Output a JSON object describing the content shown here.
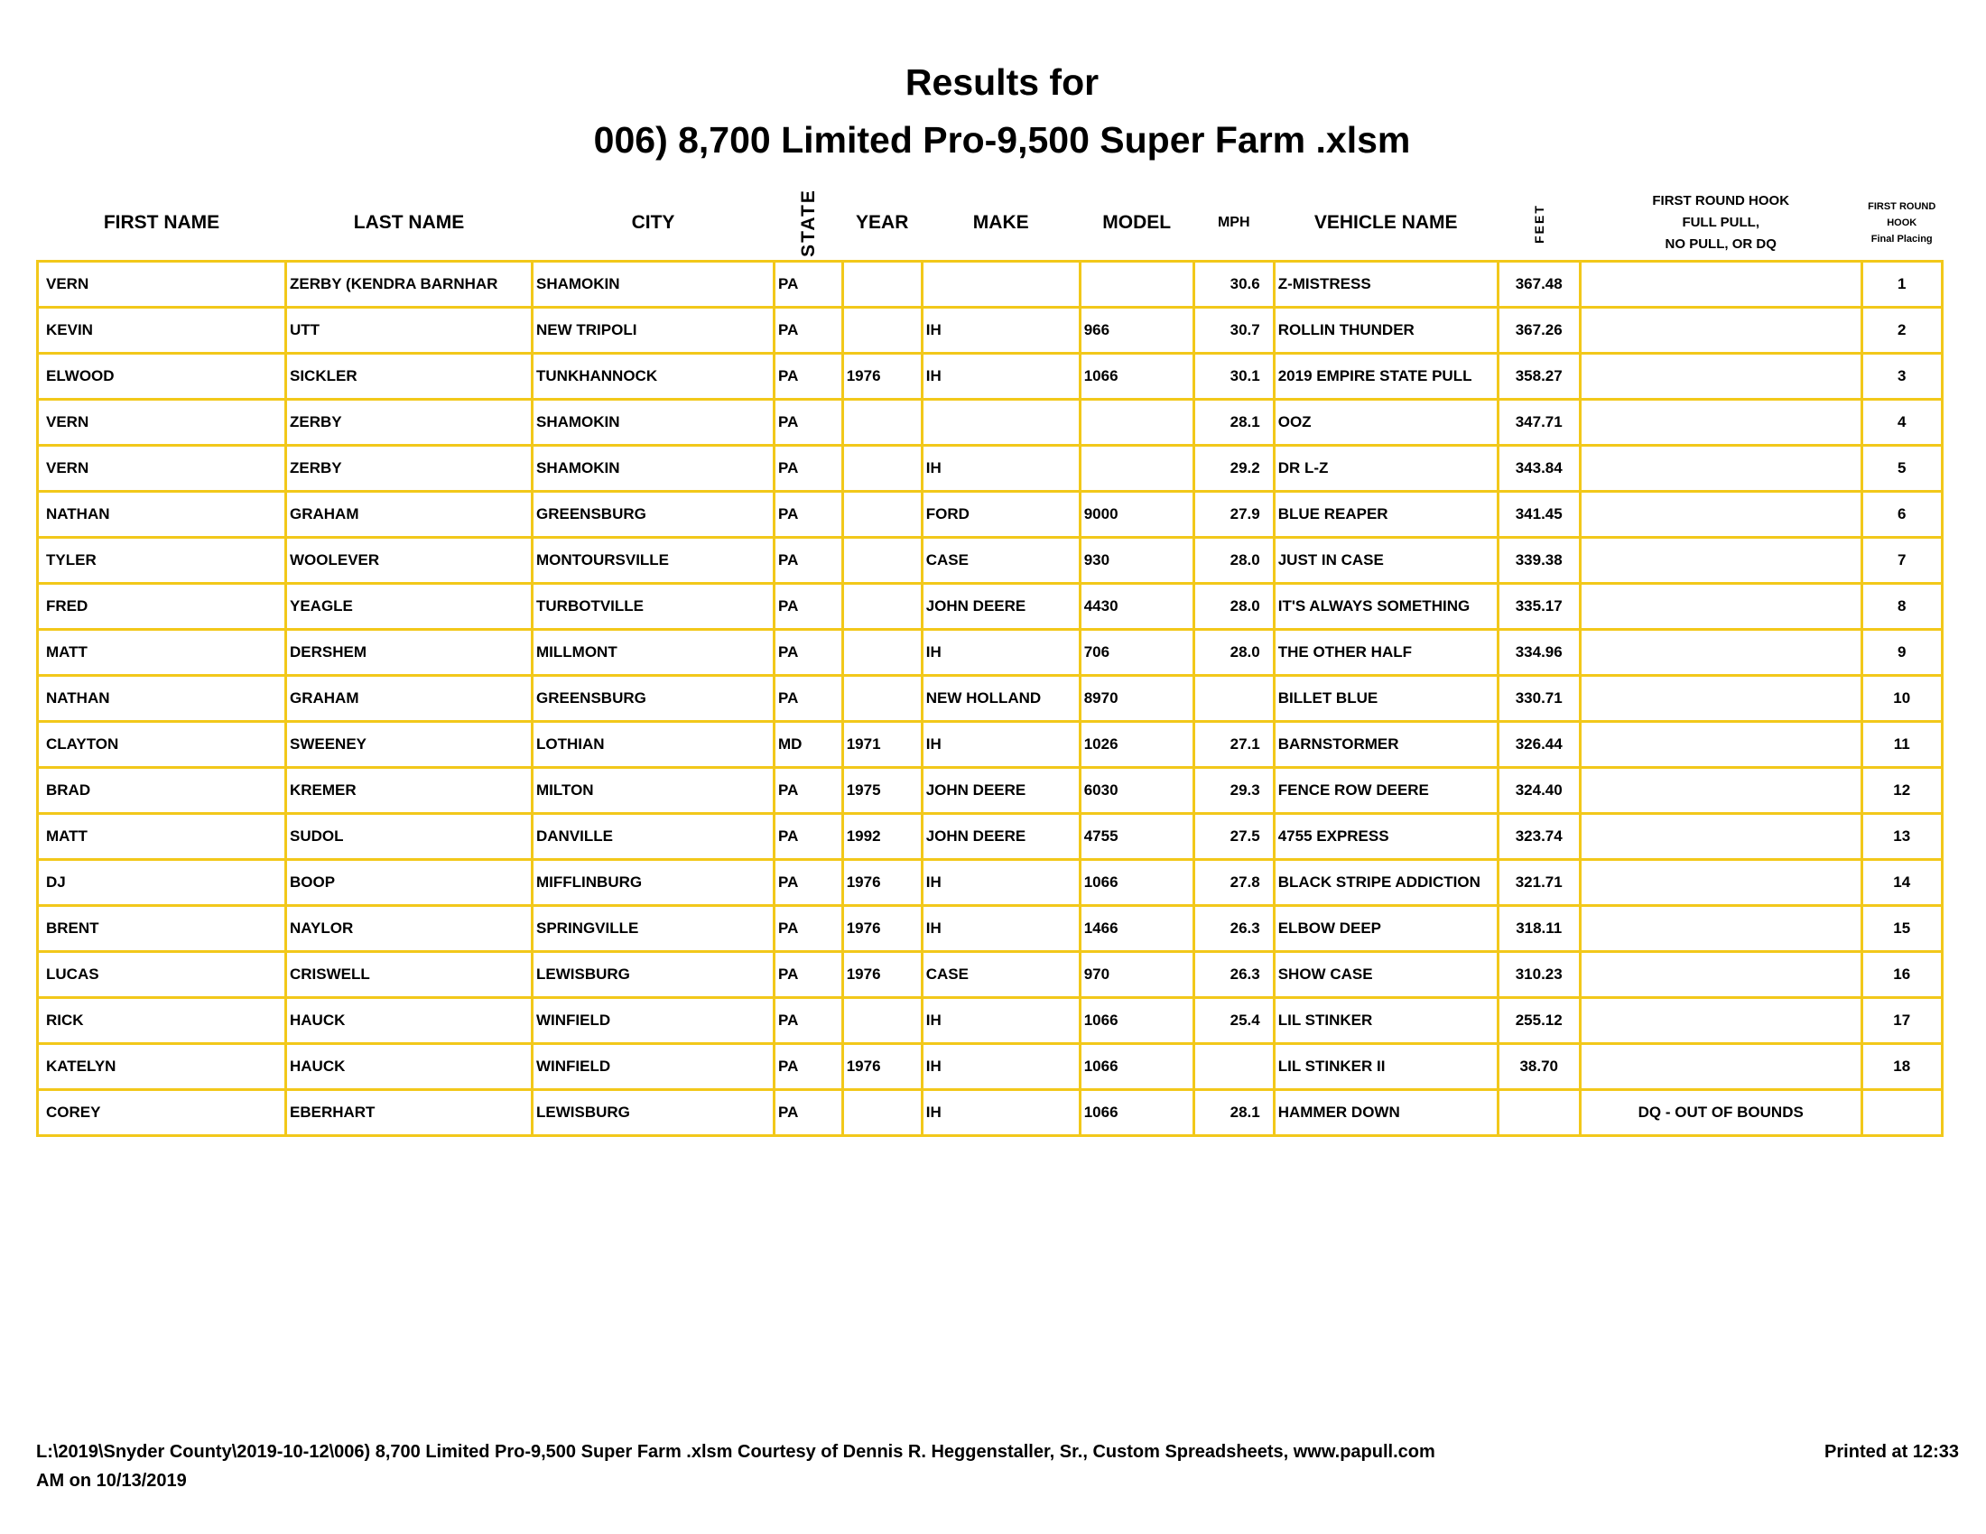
{
  "title_line1": "Results for",
  "title_line2": "006) 8,700 Limited Pro-9,500 Super Farm .xlsm",
  "columns": [
    "FIRST NAME",
    "LAST NAME",
    "CITY",
    "STATE",
    "YEAR",
    "MAKE",
    "MODEL",
    "MPH",
    "VEHICLE NAME",
    "FEET",
    "FIRST ROUND HOOK|FULL PULL,|NO PULL, OR DQ",
    "FIRST ROUND|HOOK|Final Placing"
  ],
  "rows": [
    [
      "VERN",
      "ZERBY (KENDRA BARNHAR",
      "SHAMOKIN",
      "PA",
      "",
      "",
      "",
      "30.6",
      "Z-MISTRESS",
      "367.48",
      "",
      "1"
    ],
    [
      "KEVIN",
      "UTT",
      "NEW TRIPOLI",
      "PA",
      "",
      "IH",
      "966",
      "30.7",
      "ROLLIN THUNDER",
      "367.26",
      "",
      "2"
    ],
    [
      "ELWOOD",
      "SICKLER",
      "TUNKHANNOCK",
      "PA",
      "1976",
      "IH",
      "1066",
      "30.1",
      "2019 EMPIRE STATE PULL",
      "358.27",
      "",
      "3"
    ],
    [
      "VERN",
      "ZERBY",
      "SHAMOKIN",
      "PA",
      "",
      "",
      "",
      "28.1",
      "OOZ",
      "347.71",
      "",
      "4"
    ],
    [
      "VERN",
      "ZERBY",
      "SHAMOKIN",
      "PA",
      "",
      "IH",
      "",
      "29.2",
      "DR L-Z",
      "343.84",
      "",
      "5"
    ],
    [
      "NATHAN",
      "GRAHAM",
      "GREENSBURG",
      "PA",
      "",
      "FORD",
      "9000",
      "27.9",
      "BLUE REAPER",
      "341.45",
      "",
      "6"
    ],
    [
      "TYLER",
      "WOOLEVER",
      "MONTOURSVILLE",
      "PA",
      "",
      "CASE",
      "930",
      "28.0",
      "JUST IN CASE",
      "339.38",
      "",
      "7"
    ],
    [
      "FRED",
      "YEAGLE",
      "TURBOTVILLE",
      "PA",
      "",
      "JOHN DEERE",
      "4430",
      "28.0",
      "IT'S ALWAYS SOMETHING",
      "335.17",
      "",
      "8"
    ],
    [
      "MATT",
      "DERSHEM",
      "MILLMONT",
      "PA",
      "",
      "IH",
      "706",
      "28.0",
      "THE OTHER HALF",
      "334.96",
      "",
      "9"
    ],
    [
      "NATHAN",
      "GRAHAM",
      "GREENSBURG",
      "PA",
      "",
      "NEW HOLLAND",
      "8970",
      "",
      "BILLET BLUE",
      "330.71",
      "",
      "10"
    ],
    [
      "CLAYTON",
      "SWEENEY",
      "LOTHIAN",
      "MD",
      "1971",
      "IH",
      "1026",
      "27.1",
      "BARNSTORMER",
      "326.44",
      "",
      "11"
    ],
    [
      "BRAD",
      "KREMER",
      "MILTON",
      "PA",
      "1975",
      "JOHN DEERE",
      "6030",
      "29.3",
      "FENCE ROW DEERE",
      "324.40",
      "",
      "12"
    ],
    [
      "MATT",
      "SUDOL",
      "DANVILLE",
      "PA",
      "1992",
      "JOHN DEERE",
      "4755",
      "27.5",
      "4755 EXPRESS",
      "323.74",
      "",
      "13"
    ],
    [
      "DJ",
      "BOOP",
      "MIFFLINBURG",
      "PA",
      "1976",
      "IH",
      "1066",
      "27.8",
      "BLACK STRIPE ADDICTION",
      "321.71",
      "",
      "14"
    ],
    [
      "BRENT",
      "NAYLOR",
      "SPRINGVILLE",
      "PA",
      "1976",
      "IH",
      "1466",
      "26.3",
      "ELBOW DEEP",
      "318.11",
      "",
      "15"
    ],
    [
      "LUCAS",
      "CRISWELL",
      "LEWISBURG",
      "PA",
      "1976",
      "CASE",
      "970",
      "26.3",
      "SHOW CASE",
      "310.23",
      "",
      "16"
    ],
    [
      "RICK",
      "HAUCK",
      "WINFIELD",
      "PA",
      "",
      "IH",
      "1066",
      "25.4",
      "LIL STINKER",
      "255.12",
      "",
      "17"
    ],
    [
      "KATELYN",
      "HAUCK",
      "WINFIELD",
      "PA",
      "1976",
      "IH",
      "1066",
      "",
      "LIL STINKER II",
      "38.70",
      "",
      "18"
    ],
    [
      "COREY",
      "EBERHART",
      "LEWISBURG",
      "PA",
      "",
      "IH",
      "1066",
      "28.1",
      "HAMMER DOWN",
      "",
      "DQ - OUT OF BOUNDS",
      ""
    ]
  ],
  "footer": {
    "path": "L:\\2019\\Snyder County\\2019-10-12\\006) 8,700 Limited Pro-9,500 Super Farm .xlsm  Courtesy of Dennis R. Heggenstaller, Sr., Custom Spreadsheets, www.papull.com",
    "printed_a": "Printed at 12:33",
    "printed_b": "AM on 10/13/2019"
  },
  "colors": {
    "grid": "#f2c81a",
    "text": "#000000"
  }
}
